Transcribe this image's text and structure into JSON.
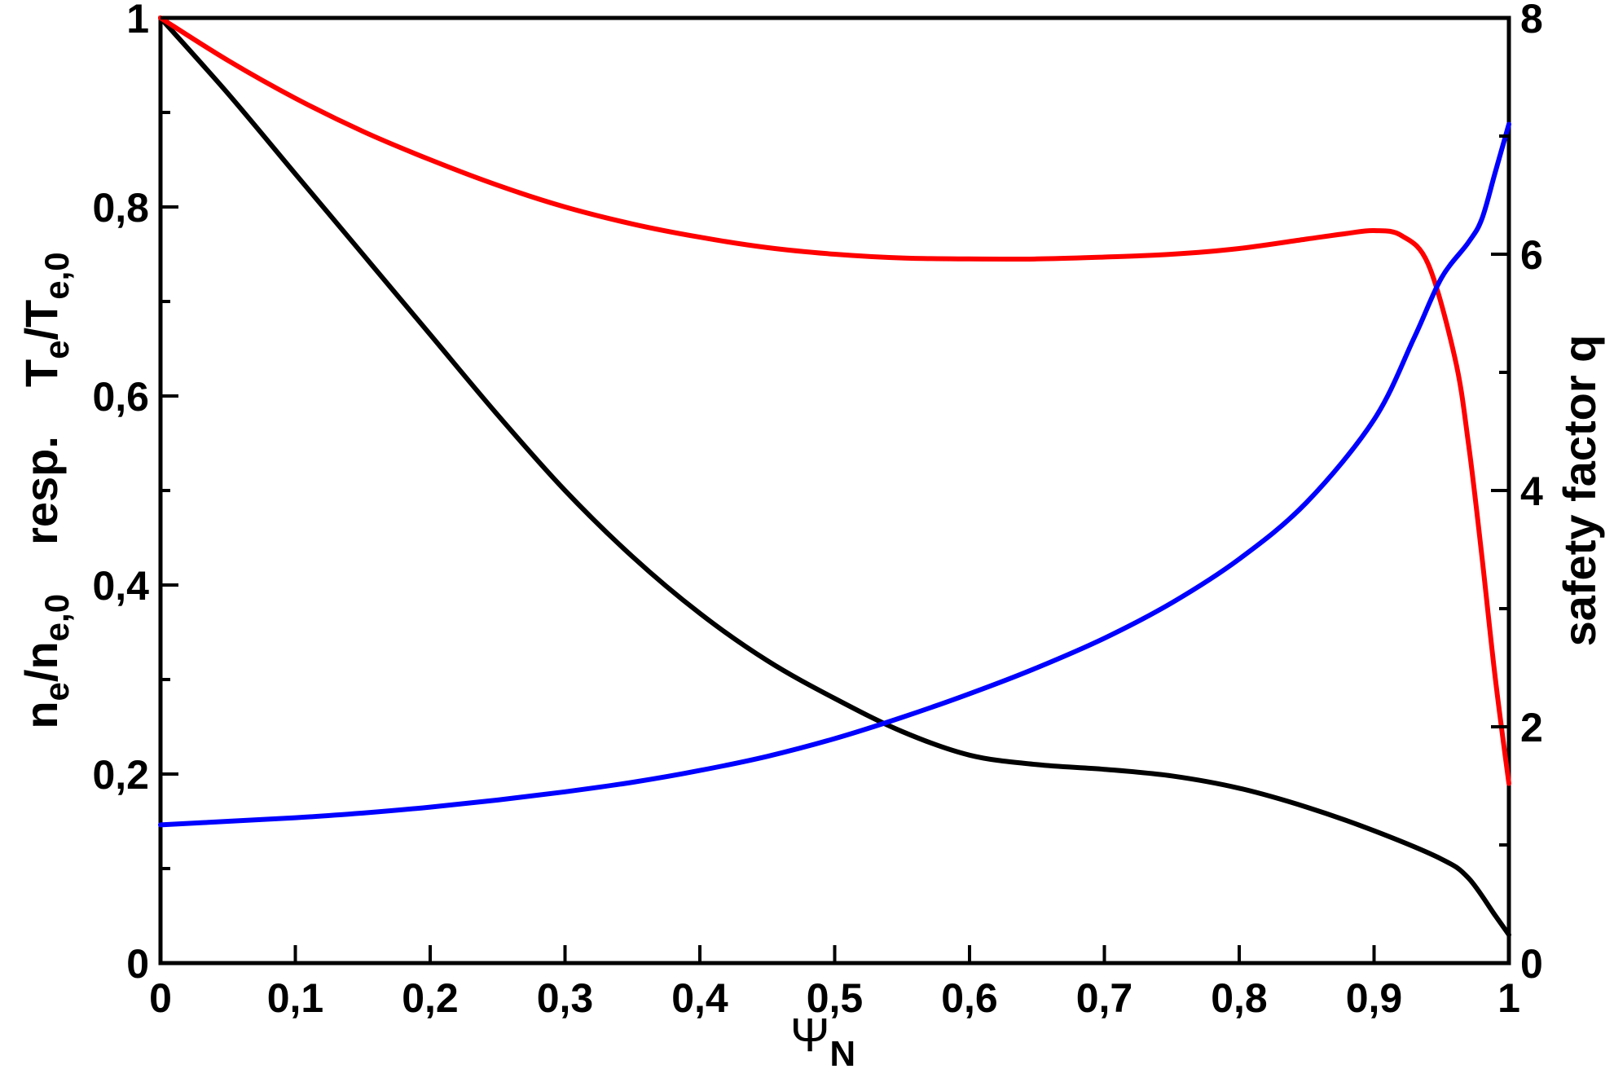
{
  "chart_data": {
    "type": "line",
    "xlim": [
      0,
      1
    ],
    "ylim_left": [
      0,
      1
    ],
    "ylim_right": [
      0,
      8
    ],
    "x_ticks": [
      "0",
      "0,1",
      "0,2",
      "0,3",
      "0,4",
      "0,5",
      "0,6",
      "0,7",
      "0,8",
      "0,9",
      "1"
    ],
    "y_left_ticks": [
      "0",
      "0,2",
      "0,4",
      "0,6",
      "0,8",
      "1"
    ],
    "y_right_ticks": [
      "0",
      "2",
      "4",
      "6",
      "8"
    ],
    "xlabel": {
      "main": "Ψ",
      "sub": "N"
    },
    "ylabel_left": {
      "part1": "n",
      "part1_sub": "e",
      "part1_mid": "/n",
      "part1_sub2": "e,0",
      "part2": "resp.",
      "part3": "T",
      "part3_sub": "e",
      "part3_mid": "/T",
      "part3_sub2": "e,0"
    },
    "ylabel_right": "safety factor q",
    "grid": false,
    "series": [
      {
        "color": "#000000",
        "axis": "left",
        "x": [
          0,
          0.05,
          0.1,
          0.15,
          0.2,
          0.25,
          0.3,
          0.35,
          0.4,
          0.45,
          0.5,
          0.55,
          0.6,
          0.65,
          0.7,
          0.75,
          0.8,
          0.85,
          0.9,
          0.95,
          0.97,
          0.99,
          1.0
        ],
        "values": [
          1.0,
          0.92,
          0.835,
          0.75,
          0.665,
          0.58,
          0.5,
          0.43,
          0.37,
          0.32,
          0.28,
          0.245,
          0.22,
          0.21,
          0.205,
          0.198,
          0.185,
          0.165,
          0.14,
          0.11,
          0.09,
          0.05,
          0.03
        ]
      },
      {
        "color": "#ff0000",
        "axis": "left",
        "x": [
          0,
          0.05,
          0.1,
          0.15,
          0.2,
          0.25,
          0.3,
          0.35,
          0.4,
          0.45,
          0.5,
          0.55,
          0.6,
          0.65,
          0.7,
          0.75,
          0.8,
          0.85,
          0.88,
          0.9,
          0.92,
          0.94,
          0.96,
          0.97,
          0.98,
          0.99,
          1.0
        ],
        "values": [
          1.0,
          0.955,
          0.915,
          0.88,
          0.85,
          0.823,
          0.8,
          0.782,
          0.768,
          0.757,
          0.75,
          0.746,
          0.745,
          0.745,
          0.747,
          0.75,
          0.756,
          0.766,
          0.772,
          0.775,
          0.77,
          0.74,
          0.64,
          0.55,
          0.43,
          0.3,
          0.19
        ]
      },
      {
        "color": "#0000ff",
        "axis": "right",
        "x": [
          0,
          0.05,
          0.1,
          0.15,
          0.2,
          0.25,
          0.3,
          0.35,
          0.4,
          0.45,
          0.5,
          0.55,
          0.6,
          0.65,
          0.7,
          0.75,
          0.8,
          0.85,
          0.9,
          0.93,
          0.95,
          0.97,
          0.98,
          0.99,
          1.0
        ],
        "values": [
          1.17,
          1.2,
          1.23,
          1.27,
          1.32,
          1.38,
          1.45,
          1.53,
          1.63,
          1.75,
          1.9,
          2.08,
          2.28,
          2.5,
          2.75,
          3.05,
          3.42,
          3.9,
          4.6,
          5.3,
          5.8,
          6.1,
          6.3,
          6.7,
          7.1
        ]
      }
    ]
  }
}
